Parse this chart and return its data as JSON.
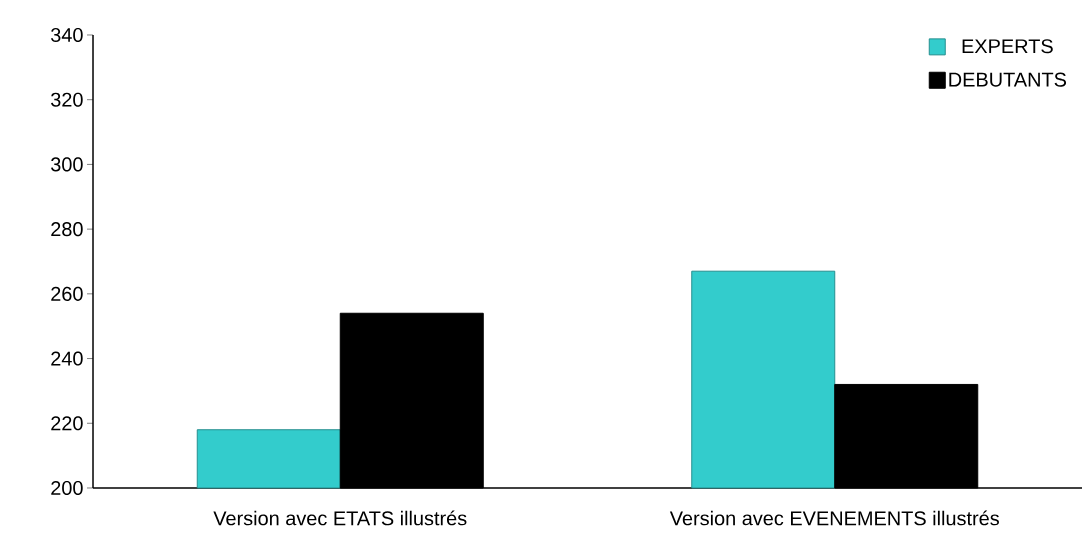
{
  "chart_data": {
    "type": "bar",
    "categories": [
      "Version avec ETATS illustrés",
      "Version avec EVENEMENTS illustrés"
    ],
    "series": [
      {
        "name": "EXPERTS",
        "color": "#33cccc",
        "values": [
          218,
          267
        ]
      },
      {
        "name": "DEBUTANTS",
        "color": "#000000",
        "values": [
          254,
          232
        ]
      }
    ],
    "ylim": [
      200,
      340
    ],
    "yticks": [
      200,
      220,
      240,
      260,
      280,
      300,
      320,
      340
    ],
    "grid": false,
    "legend": "top right"
  }
}
